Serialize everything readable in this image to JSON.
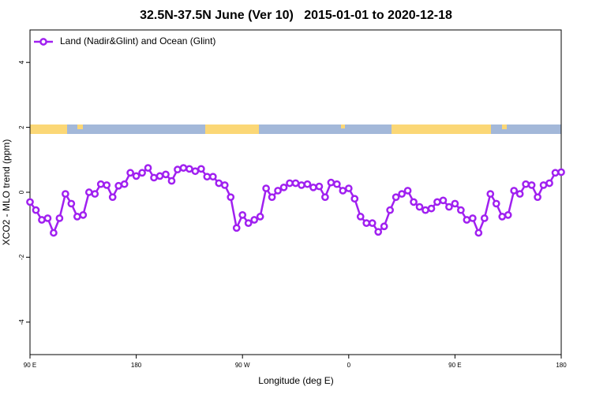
{
  "chart_data": {
    "type": "line",
    "title": "32.5N-37.5N June (Ver 10)   2015-01-01 to 2020-12-18",
    "xlabel": "Longitude (deg E)",
    "ylabel": "XCO2 - MLO trend (ppm)",
    "x": [
      90,
      95,
      100,
      105,
      110,
      115,
      120,
      125,
      130,
      135,
      140,
      145,
      150,
      155,
      160,
      165,
      170,
      175,
      180,
      185,
      190,
      195,
      200,
      205,
      210,
      215,
      220,
      225,
      230,
      235,
      240,
      245,
      250,
      255,
      260,
      265,
      270,
      275,
      280,
      285,
      290,
      295,
      300,
      305,
      310,
      315,
      320,
      325,
      330,
      335,
      340,
      345,
      350,
      355,
      360,
      365,
      370,
      375,
      380,
      385,
      390,
      395,
      400,
      405,
      410,
      415,
      420,
      425,
      430,
      435,
      440,
      445,
      450,
      455,
      460,
      465,
      470,
      475,
      480,
      485,
      490,
      495,
      500,
      505,
      510,
      515,
      520,
      525,
      530,
      535,
      540
    ],
    "series": [
      {
        "name": "Land (Nadir&Glint) and Ocean (Glint)",
        "color": "#a020f0",
        "values": [
          -0.3,
          -0.55,
          -0.85,
          -0.8,
          -1.25,
          -0.8,
          -0.05,
          -0.35,
          -0.75,
          -0.7,
          0.0,
          -0.05,
          0.25,
          0.22,
          -0.15,
          0.2,
          0.25,
          0.6,
          0.5,
          0.6,
          0.75,
          0.45,
          0.5,
          0.55,
          0.35,
          0.7,
          0.75,
          0.72,
          0.65,
          0.72,
          0.48,
          0.48,
          0.28,
          0.22,
          -0.15,
          -1.1,
          -0.7,
          -0.95,
          -0.85,
          -0.75,
          0.12,
          -0.15,
          0.05,
          0.15,
          0.28,
          0.28,
          0.22,
          0.25,
          0.15,
          0.18,
          -0.15,
          0.3,
          0.25,
          0.05,
          0.12,
          -0.2,
          -0.75,
          -0.95,
          -0.95,
          -1.22,
          -1.05,
          -0.55,
          -0.15,
          -0.05,
          0.05,
          -0.3,
          -0.45,
          -0.55,
          -0.5,
          -0.3,
          -0.25,
          -0.45,
          -0.35,
          -0.55,
          -0.85,
          -0.8,
          -1.25,
          -0.8,
          -0.05,
          -0.35,
          -0.75,
          -0.7,
          0.05,
          -0.05,
          0.25,
          0.22,
          -0.15,
          0.22,
          0.28,
          0.6,
          0.62
        ]
      }
    ],
    "xlim": [
      90,
      540
    ],
    "xticks": [
      {
        "value": 90,
        "label": "90 E"
      },
      180,
      {
        "value": 270,
        "label": "90 W"
      },
      {
        "value": 360,
        "label": "0"
      },
      {
        "value": 450,
        "label": "90 E"
      },
      {
        "value": 540,
        "label": "180"
      }
    ],
    "ylim": [
      -5,
      5
    ],
    "yticks": [
      -4,
      -2,
      0,
      2,
      4
    ],
    "legend": "top-left"
  }
}
